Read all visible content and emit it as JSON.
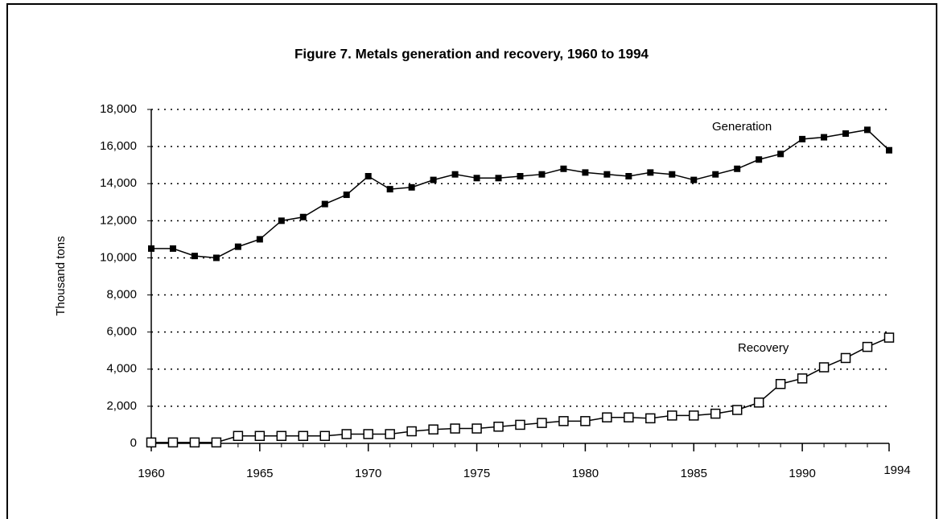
{
  "chart_data": {
    "type": "line",
    "title": "Figure 7. Metals generation and recovery, 1960 to 1994",
    "ylabel": "Thousand tons",
    "x": [
      1960,
      1961,
      1962,
      1963,
      1964,
      1965,
      1966,
      1967,
      1968,
      1969,
      1970,
      1971,
      1972,
      1973,
      1974,
      1975,
      1976,
      1977,
      1978,
      1979,
      1980,
      1981,
      1982,
      1983,
      1984,
      1985,
      1986,
      1987,
      1988,
      1989,
      1990,
      1991,
      1992,
      1993,
      1994
    ],
    "series": [
      {
        "name": "Generation",
        "color": "#000000",
        "marker": "filled-square",
        "values": [
          10500,
          10500,
          10100,
          10000,
          10600,
          11000,
          12000,
          12200,
          12900,
          13400,
          14400,
          13700,
          13800,
          14200,
          14500,
          14300,
          14300,
          14400,
          14500,
          14800,
          14600,
          14500,
          14400,
          14600,
          14500,
          14200,
          14500,
          14800,
          15300,
          15600,
          16400,
          16500,
          16700,
          16900,
          15800
        ]
      },
      {
        "name": "Recovery",
        "color": "#000000",
        "marker": "open-square",
        "values": [
          50,
          50,
          50,
          50,
          400,
          400,
          400,
          400,
          400,
          500,
          500,
          500,
          650,
          750,
          800,
          800,
          900,
          1000,
          1100,
          1200,
          1200,
          1400,
          1400,
          1350,
          1500,
          1500,
          1600,
          1800,
          2200,
          3200,
          3500,
          4100,
          4600,
          5200,
          5700
        ]
      }
    ],
    "xlim": [
      1960,
      1994
    ],
    "xticks": [
      1960,
      1965,
      1970,
      1975,
      1980,
      1985,
      1990,
      1994
    ],
    "ylim": [
      0,
      18000
    ],
    "yticks": [
      0,
      {
        "value": 2000,
        "label": "2,000"
      },
      {
        "value": 4000,
        "label": "4,000"
      },
      {
        "value": 6000,
        "label": "6,000"
      },
      {
        "value": 8000,
        "label": "8,000"
      },
      {
        "value": 10000,
        "label": "10,000"
      },
      {
        "value": 12000,
        "label": "12,000"
      },
      {
        "value": 14000,
        "label": "14,000"
      },
      {
        "value": 16000,
        "label": "16,000"
      },
      {
        "value": 18000,
        "label": "18,000"
      }
    ],
    "grid": true
  }
}
